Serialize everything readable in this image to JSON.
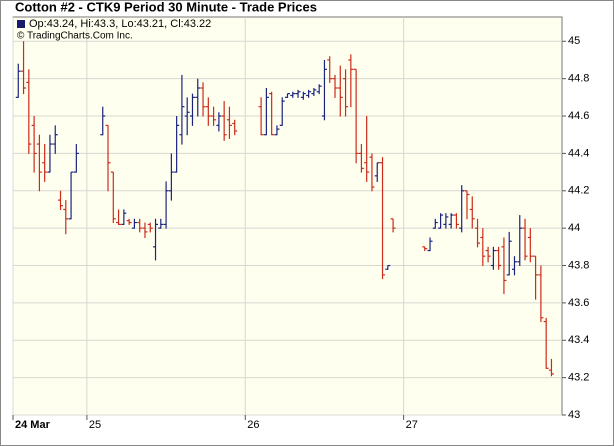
{
  "chart_data": {
    "type": "ohlc",
    "title": "Cotton #2 - CTK9 Period 30 Minute - Trade Prices",
    "legend": "Op:43.24, Hi:43.3, Lo:43.21, Cl:43.22",
    "legend_color": "#1a1a6e",
    "copyright": "© TradingCharts.Com Inc.",
    "up_color": "#1a237e",
    "down_color": "#cc2a1a",
    "background": "#fffff0",
    "grid": true,
    "xlim": [
      0,
      104
    ],
    "xticks": [
      {
        "value": 0,
        "label": "24 Mar"
      },
      {
        "value": 14,
        "label": "25"
      },
      {
        "value": 44,
        "label": "26"
      },
      {
        "value": 74,
        "label": "27"
      }
    ],
    "ylim": [
      43,
      45.13
    ],
    "yticks": [
      43,
      43.2,
      43.4,
      43.6,
      43.8,
      44,
      44.2,
      44.4,
      44.6,
      44.8,
      45
    ],
    "x": [
      1,
      2,
      3,
      4,
      5,
      6,
      7,
      8,
      9,
      10,
      11,
      12,
      17,
      18,
      19,
      20,
      21,
      22,
      23,
      24,
      25,
      26,
      27,
      28,
      29,
      30,
      31,
      32,
      33,
      34,
      35,
      36,
      37,
      38,
      39,
      40,
      41,
      42,
      47,
      48,
      49,
      50,
      51,
      52,
      53,
      54,
      55,
      56,
      57,
      58,
      59,
      60,
      61,
      62,
      63,
      64,
      65,
      66,
      67,
      68,
      69,
      70,
      71,
      72,
      78,
      79,
      80,
      81,
      82,
      83,
      84,
      85,
      86,
      87,
      88,
      89,
      90,
      91,
      92,
      93,
      94,
      95,
      96,
      97,
      98,
      99,
      100,
      101,
      102
    ],
    "open": [
      44.7,
      44.84,
      44.78,
      44.55,
      44.45,
      44.35,
      44.3,
      44.45,
      44.15,
      44.1,
      44.05,
      44.3,
      44.5,
      44.55,
      44.3,
      44.03,
      44.02,
      44.04,
      44.0,
      44.03,
      44.0,
      44.02,
      43.9,
      44.0,
      44.02,
      44.2,
      44.3,
      44.5,
      44.6,
      44.6,
      44.7,
      44.75,
      44.65,
      44.6,
      44.55,
      44.6,
      44.58,
      44.56,
      44.65,
      44.5,
      44.72,
      44.5,
      44.55,
      44.7,
      44.71,
      44.72,
      44.7,
      44.71,
      44.72,
      44.73,
      44.6,
      44.9,
      44.8,
      44.75,
      44.8,
      44.9,
      44.85,
      44.4,
      44.35,
      44.38,
      44.28,
      44.35,
      43.78,
      44.05,
      43.9,
      43.88,
      44.0,
      44.0,
      44.02,
      44.02,
      44.07,
      44.0,
      44.2,
      44.1,
      44.0,
      43.95,
      43.88,
      43.8,
      43.88,
      43.9,
      43.75,
      43.78,
      43.82,
      44.0,
      43.95,
      43.85,
      43.75,
      43.5,
      43.24
    ],
    "high": [
      44.88,
      45.0,
      44.85,
      44.6,
      44.5,
      44.45,
      44.5,
      44.55,
      44.2,
      44.15,
      44.3,
      44.45,
      44.65,
      44.55,
      44.3,
      44.1,
      44.1,
      44.05,
      44.05,
      44.05,
      44.03,
      44.03,
      44.05,
      44.05,
      44.25,
      44.4,
      44.6,
      44.82,
      44.7,
      44.72,
      44.8,
      44.78,
      44.7,
      44.65,
      44.62,
      44.68,
      44.65,
      44.58,
      44.7,
      44.75,
      44.73,
      44.55,
      44.7,
      44.72,
      44.73,
      44.74,
      44.73,
      44.74,
      44.75,
      44.77,
      44.9,
      44.92,
      44.82,
      44.87,
      44.85,
      44.93,
      44.85,
      44.45,
      44.6,
      44.4,
      44.35,
      44.38,
      43.8,
      44.05,
      43.9,
      43.95,
      44.05,
      44.08,
      44.08,
      44.08,
      44.08,
      44.23,
      44.2,
      44.17,
      44.05,
      44.0,
      43.9,
      43.9,
      43.9,
      43.95,
      43.98,
      43.85,
      44.07,
      44.05,
      44.0,
      43.85,
      43.8,
      43.52,
      43.3
    ],
    "low": [
      44.7,
      44.72,
      44.4,
      44.3,
      44.2,
      44.25,
      44.3,
      44.4,
      44.1,
      43.97,
      44.05,
      44.3,
      44.5,
      44.2,
      44.03,
      44.02,
      44.02,
      44.02,
      44.0,
      43.98,
      43.95,
      43.98,
      43.83,
      44.0,
      44.0,
      44.15,
      44.3,
      44.45,
      44.5,
      44.55,
      44.6,
      44.6,
      44.55,
      44.55,
      44.52,
      44.47,
      44.48,
      44.5,
      44.5,
      44.5,
      44.5,
      44.5,
      44.55,
      44.7,
      44.7,
      44.7,
      44.69,
      44.7,
      44.71,
      44.72,
      44.58,
      44.78,
      44.7,
      44.6,
      44.6,
      44.65,
      44.35,
      44.3,
      44.25,
      44.2,
      44.25,
      43.73,
      43.78,
      43.98,
      43.88,
      43.88,
      44.0,
      44.0,
      44.0,
      44.0,
      44.0,
      43.98,
      44.05,
      44.0,
      43.9,
      43.8,
      43.82,
      43.78,
      43.78,
      43.65,
      43.75,
      43.75,
      43.8,
      43.83,
      43.82,
      43.62,
      43.5,
      43.25,
      43.21
    ],
    "close": [
      44.84,
      44.75,
      44.45,
      44.4,
      44.3,
      44.3,
      44.45,
      44.5,
      44.12,
      44.05,
      44.3,
      44.4,
      44.6,
      44.35,
      44.05,
      44.02,
      44.08,
      44.03,
      44.03,
      44.0,
      43.98,
      44.0,
      44.02,
      44.02,
      44.2,
      44.3,
      44.55,
      44.65,
      44.62,
      44.7,
      44.75,
      44.65,
      44.6,
      44.58,
      44.6,
      44.5,
      44.55,
      44.52,
      44.5,
      44.7,
      44.5,
      44.53,
      44.68,
      44.72,
      44.72,
      44.73,
      44.72,
      44.73,
      44.74,
      44.76,
      44.85,
      44.8,
      44.75,
      44.7,
      44.65,
      44.85,
      44.4,
      44.32,
      44.3,
      44.22,
      44.35,
      43.75,
      43.8,
      44.0,
      43.89,
      43.93,
      44.03,
      44.07,
      44.06,
      44.07,
      44.02,
      44.2,
      44.18,
      44.05,
      43.92,
      43.85,
      43.85,
      43.88,
      43.8,
      43.72,
      43.93,
      43.82,
      44.0,
      43.85,
      43.85,
      43.75,
      43.52,
      43.25,
      43.22
    ]
  }
}
